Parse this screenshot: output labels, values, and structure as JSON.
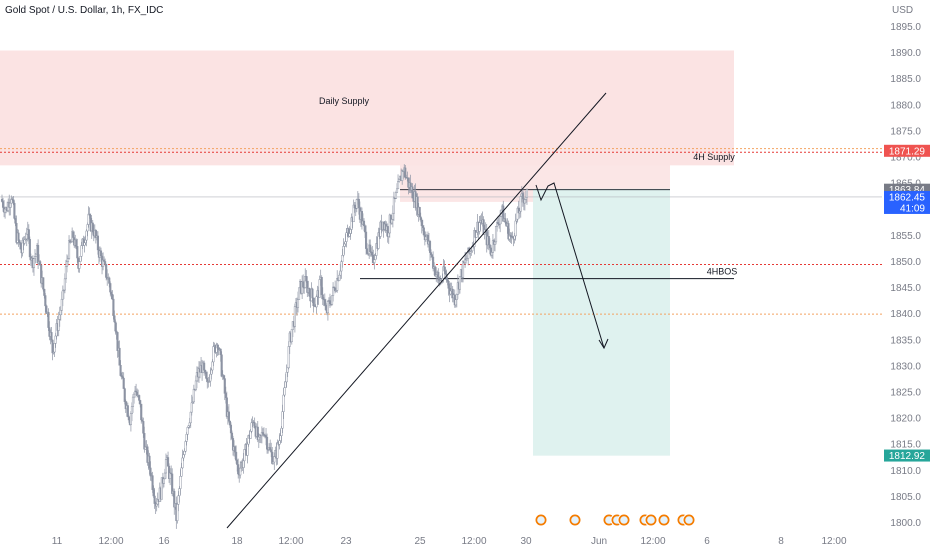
{
  "header": {
    "title": "Gold Spot / U.S. Dollar, 1h, FX_IDC",
    "currency": "USD"
  },
  "colors": {
    "bull": "#26a69a",
    "bear": "#ef5350",
    "candle": "#8c93a3",
    "supply_zone": "#fbe3e3",
    "target_zone": "#dff2ef",
    "red_dotted": "#e53935",
    "orange_dotted": "#f4a261",
    "price_grey": "#787b86",
    "price_blue": "#2962ff",
    "target_teal": "#26a69a"
  },
  "chart_data": {
    "type": "candlestick",
    "symbol": "Gold Spot / U.S. Dollar",
    "interval": "1h",
    "ylim": [
      1798,
      1898
    ],
    "y_ticks": [
      1800,
      1805,
      1810,
      1815,
      1820,
      1825,
      1830,
      1835,
      1840,
      1845,
      1850,
      1855,
      1860,
      1865,
      1870,
      1875,
      1880,
      1885,
      1890,
      1895
    ],
    "x_ticks": [
      "11",
      "12:00",
      "16",
      "18",
      "12:00",
      "23",
      "25",
      "12:00",
      "30",
      "Jun",
      "12:00",
      "6",
      "8",
      "12:00"
    ],
    "price_path": [
      1862,
      1860,
      1863,
      1855,
      1852,
      1856,
      1850,
      1852,
      1846,
      1840,
      1833,
      1838,
      1843,
      1852,
      1855,
      1850,
      1854,
      1858,
      1856,
      1852,
      1849,
      1846,
      1840,
      1830,
      1824,
      1820,
      1826,
      1822,
      1814,
      1810,
      1804,
      1806,
      1812,
      1808,
      1801,
      1810,
      1818,
      1822,
      1828,
      1830,
      1826,
      1832,
      1835,
      1828,
      1820,
      1815,
      1810,
      1812,
      1816,
      1820,
      1815,
      1818,
      1814,
      1812,
      1816,
      1825,
      1835,
      1840,
      1845,
      1846,
      1844,
      1842,
      1846,
      1840,
      1843,
      1846,
      1850,
      1855,
      1858,
      1862,
      1858,
      1853,
      1850,
      1854,
      1858,
      1856,
      1860,
      1864,
      1868,
      1865,
      1863,
      1860,
      1856,
      1853,
      1849,
      1846,
      1848,
      1845,
      1843,
      1847,
      1850,
      1852,
      1856,
      1858,
      1855,
      1852,
      1856,
      1860,
      1857,
      1854,
      1858,
      1862,
      1863
    ],
    "zones": [
      {
        "label": "Daily Supply",
        "from": 1868.5,
        "to": 1890.5,
        "color": "supply_zone"
      },
      {
        "label": "4H Supply",
        "from": 1861.5,
        "to": 1871.8,
        "color": "supply_zone"
      },
      {
        "label": "",
        "from": 1812.9,
        "to": 1864.0,
        "color": "target_zone"
      }
    ],
    "horizontal_lines": [
      {
        "price": 1871.7,
        "style": "dotted",
        "color": "orange_dotted"
      },
      {
        "price": 1871.0,
        "style": "dotted",
        "color": "red_dotted"
      },
      {
        "price": 1849.5,
        "style": "dotted",
        "color": "red_dotted"
      },
      {
        "price": 1840.0,
        "style": "dotted",
        "color": "orange_dotted"
      },
      {
        "price": 1846.8,
        "style": "solid",
        "label": "4HBOS",
        "color": "#131722"
      }
    ],
    "price_labels": [
      {
        "text": "1871.29",
        "price": 1871.29,
        "color": "bear"
      },
      {
        "text": "1863.84",
        "price": 1863.84,
        "color": "price_grey"
      },
      {
        "text": "1862.45",
        "price": 1862.45,
        "color": "price_blue"
      },
      {
        "text": "41:09",
        "price": 1862.45,
        "color": "price_blue"
      },
      {
        "text": "1812.92",
        "price": 1812.92,
        "color": "target_teal"
      }
    ]
  }
}
